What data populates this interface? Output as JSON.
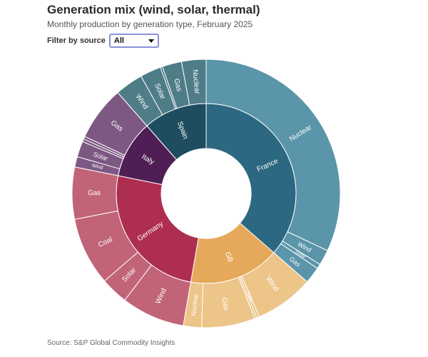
{
  "header": {
    "title": "Generation mix (wind, solar, thermal)",
    "subtitle": "Monthly production by generation type, February 2025"
  },
  "filter": {
    "label": "Filter by source",
    "selected": "All"
  },
  "footer": {
    "source": "Source: S&P Global Commodity Insights"
  },
  "chart_data": {
    "type": "sunburst",
    "title": "Generation mix (wind, solar, thermal)",
    "subtitle": "Monthly production by generation type, February 2025",
    "start_angle_deg": 0,
    "direction": "clockwise",
    "countries": [
      {
        "name": "France",
        "color": "#2d6882",
        "child_color": "#5a95a9",
        "children": [
          {
            "name": "Nuclear",
            "value": 97.5
          },
          {
            "name": "Wind",
            "value": 5.7
          },
          {
            "name": "Solar",
            "value": 1.7
          },
          {
            "name": "Gas",
            "value": 6.1
          }
        ]
      },
      {
        "name": "GB",
        "color": "#e6a95b",
        "child_color": "#edc589",
        "children": [
          {
            "name": "Wind",
            "value": 21.6
          },
          {
            "name": "Solar",
            "value": 1.0
          },
          {
            "name": "",
            "value": 0.8
          },
          {
            "name": "Gas",
            "value": 19.6
          },
          {
            "name": "Nuclear",
            "value": 6.7
          }
        ]
      },
      {
        "name": "Germany",
        "color": "#ad2e4f",
        "child_color": "#c16478",
        "children": [
          {
            "name": "Wind",
            "value": 23.3
          },
          {
            "name": "Solar",
            "value": 10.1
          },
          {
            "name": "Coal",
            "value": 25.0
          },
          {
            "name": "Gas",
            "value": 19.1
          }
        ]
      },
      {
        "name": "Italy",
        "color": "#4f1e55",
        "child_color": "#7d5883",
        "children": [
          {
            "name": "Wind",
            "value": 3.8
          },
          {
            "name": "Solar",
            "value": 5.8
          },
          {
            "name": "",
            "value": 1.0
          },
          {
            "name": "",
            "value": 1.0
          },
          {
            "name": "Gas",
            "value": 20.0
          }
        ]
      },
      {
        "name": "Spain",
        "color": "#1d4d5e",
        "child_color": "#4e7c87",
        "children": [
          {
            "name": "Wind",
            "value": 10.3
          },
          {
            "name": "Solar",
            "value": 7.7
          },
          {
            "name": "",
            "value": 0.8
          },
          {
            "name": "Gas",
            "value": 7.1
          },
          {
            "name": "Nuclear",
            "value": 9.0
          }
        ]
      }
    ]
  }
}
